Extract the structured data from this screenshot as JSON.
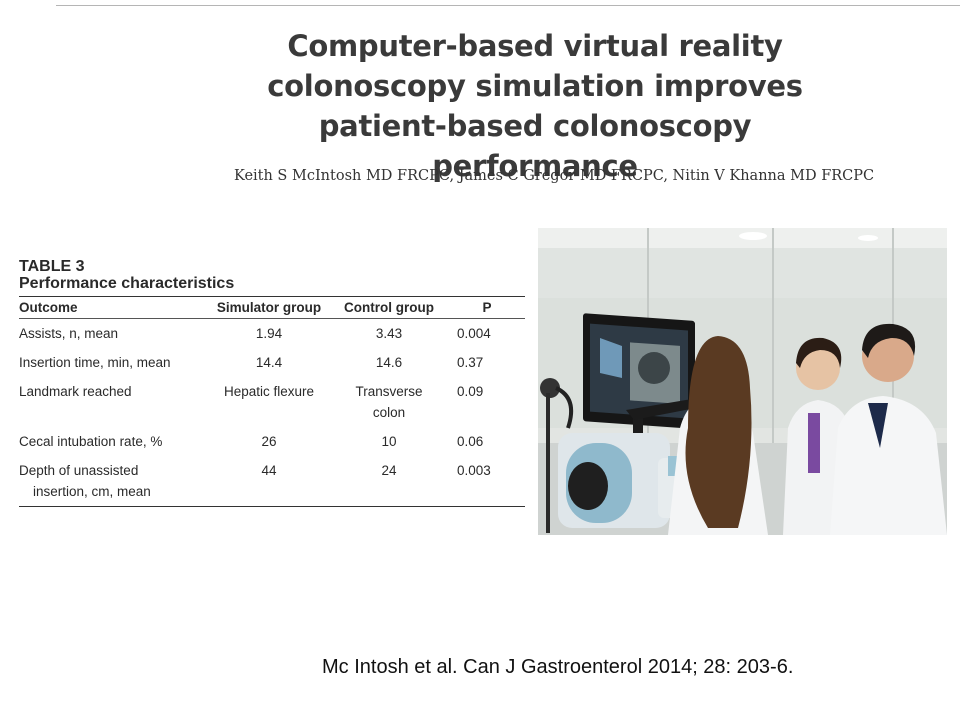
{
  "paper": {
    "title_lines": [
      "Computer-based virtual reality",
      "colonoscopy simulation improves",
      "patient-based colonoscopy performance"
    ],
    "authors": "Keith S McIntosh MD FRCPC, James C Gregor MD FRCPC, Nitin V Khanna MD FRCPC"
  },
  "table": {
    "label": "TABLE 3",
    "caption": "Performance characteristics",
    "headers": [
      "Outcome",
      "Simulator group",
      "Control group",
      "P"
    ],
    "rows": [
      {
        "outcome": [
          "Assists, n, mean"
        ],
        "simulator": [
          "1.94"
        ],
        "control": [
          "3.43"
        ],
        "p": "0.004"
      },
      {
        "outcome": [
          "Insertion time, min, mean"
        ],
        "simulator": [
          "14.4"
        ],
        "control": [
          "14.6"
        ],
        "p": "0.37"
      },
      {
        "outcome": [
          "Landmark reached"
        ],
        "simulator": [
          "Hepatic flexure"
        ],
        "control": [
          "Transverse",
          "colon"
        ],
        "p": "0.09"
      },
      {
        "outcome": [
          "Cecal intubation rate, %"
        ],
        "simulator": [
          "26"
        ],
        "control": [
          "10"
        ],
        "p": "0.06"
      },
      {
        "outcome": [
          "Depth of unassisted",
          "insertion, cm, mean"
        ],
        "simulator": [
          "44"
        ],
        "control": [
          "24"
        ],
        "p": "0.003"
      }
    ]
  },
  "photo": {
    "description_icon": "simulator-training-photo"
  },
  "citation": "Mc Intosh et al. Can J Gastroenterol 2014; 28: 203-6."
}
